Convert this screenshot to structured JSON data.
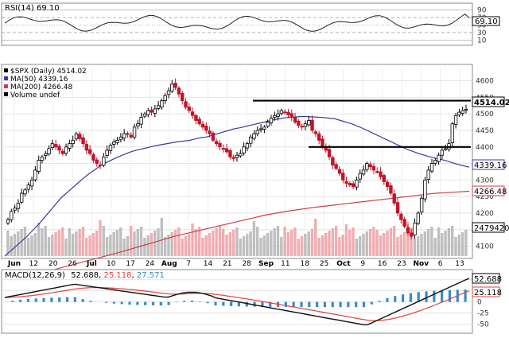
{
  "chart_data": {
    "type": "candlestick",
    "symbol": "$SPX",
    "period": "Daily",
    "last_close": "4514.02",
    "x_labels": [
      "Jun",
      "12",
      "20",
      "26",
      "Jul",
      "10",
      "17",
      "24",
      "Aug",
      "7",
      "14",
      "21",
      "28",
      "Sep",
      "11",
      "18",
      "25",
      "Oct",
      "9",
      "16",
      "23",
      "Nov",
      "6",
      "13"
    ],
    "price_axis": {
      "ylim": [
        4070,
        4640
      ],
      "ticks": [
        "4600",
        "4550",
        "4500",
        "4450",
        "4400",
        "4350",
        "4300",
        "4250",
        "4200",
        "4150",
        "4100"
      ]
    },
    "price_labels": {
      "last": "4514.02",
      "ma50": "4339.16",
      "ma200": "4266.48",
      "volume": "2479420"
    },
    "legend": [
      {
        "text": "$SPX (Daily) 4514.02",
        "color": "#000000"
      },
      {
        "text": "MA(50) 4339.16",
        "color": "#3a3aa0"
      },
      {
        "text": "MA(200) 4266.48",
        "color": "#d23a4a"
      },
      {
        "text": "Volume undef",
        "color": "#000000"
      }
    ],
    "horizontal_levels": [
      4540,
      4400
    ],
    "rsi": {
      "label": "RSI(14) 69.10",
      "value": "69.10",
      "ticks": [
        "90",
        "70",
        "50",
        "30",
        "10"
      ],
      "ylim": [
        0,
        100
      ]
    },
    "macd": {
      "label_prefix": "MACD(12,26,9)",
      "macd": "52.688",
      "signal": "25.118",
      "histogram": "27.571",
      "value_tags": [
        "52.688",
        "25.118"
      ],
      "ticks": [
        "50",
        "25",
        "0",
        "-25",
        "-50"
      ],
      "ylim": [
        -65,
        62
      ]
    },
    "series_close": [
      4180,
      4205,
      4215,
      4230,
      4260,
      4270,
      4285,
      4300,
      4330,
      4360,
      4370,
      4380,
      4395,
      4410,
      4400,
      4390,
      4380,
      4400,
      4410,
      4420,
      4440,
      4425,
      4410,
      4390,
      4380,
      4360,
      4350,
      4345,
      4370,
      4390,
      4405,
      4415,
      4420,
      4430,
      4440,
      4440,
      4430,
      4460,
      4470,
      4490,
      4500,
      4510,
      4505,
      4515,
      4525,
      4540,
      4555,
      4570,
      4590,
      4580,
      4560,
      4540,
      4520,
      4510,
      4495,
      4480,
      4470,
      4460,
      4450,
      4440,
      4420,
      4410,
      4400,
      4395,
      4385,
      4370,
      4365,
      4375,
      4380,
      4400,
      4410,
      4430,
      4440,
      4450,
      4455,
      4460,
      4475,
      4487,
      4495,
      4500,
      4510,
      4505,
      4497,
      4490,
      4475,
      4465,
      4460,
      4470,
      4480,
      4450,
      4440,
      4420,
      4400,
      4390,
      4370,
      4345,
      4335,
      4320,
      4300,
      4290,
      4285,
      4280,
      4300,
      4320,
      4330,
      4350,
      4340,
      4330,
      4325,
      4310,
      4295,
      4280,
      4260,
      4230,
      4200,
      4180,
      4160,
      4140,
      4130,
      4170,
      4200,
      4245,
      4300,
      4330,
      4350,
      4360,
      4375,
      4390,
      4395,
      4410,
      4470,
      4495,
      4505,
      4510,
      4514
    ],
    "ma50": [
      4070,
      4085,
      4100,
      4115,
      4130,
      4148,
      4165,
      4185,
      4205,
      4225,
      4245,
      4260,
      4275,
      4290,
      4305,
      4318,
      4330,
      4342,
      4352,
      4360,
      4368,
      4375,
      4382,
      4388,
      4392,
      4396,
      4400,
      4404,
      4407,
      4410,
      4413,
      4416,
      4418,
      4420,
      4424,
      4428,
      4430,
      4435,
      4440,
      4445,
      4450,
      4455,
      4458,
      4462,
      4466,
      4470,
      4474,
      4478,
      4482,
      4485,
      4488,
      4490,
      4491,
      4492,
      4492,
      4491,
      4490,
      4489,
      4487,
      4485,
      4480,
      4475,
      4470,
      4463,
      4456,
      4448,
      4440,
      4432,
      4424,
      4416,
      4408,
      4400,
      4392,
      4386,
      4380,
      4375,
      4370,
      4366,
      4362,
      4358,
      4352,
      4347,
      4343,
      4339
    ],
    "ma200": [
      3990,
      4000,
      4010,
      4018,
      4026,
      4035,
      4044,
      4053,
      4062,
      4071,
      4080,
      4090,
      4100,
      4110,
      4120,
      4130,
      4138,
      4146,
      4154,
      4162,
      4170,
      4178,
      4186,
      4194,
      4200,
      4206,
      4211,
      4216,
      4220,
      4224,
      4228,
      4232,
      4236,
      4240,
      4244,
      4248,
      4252,
      4256,
      4260,
      4262,
      4264,
      4266
    ]
  }
}
